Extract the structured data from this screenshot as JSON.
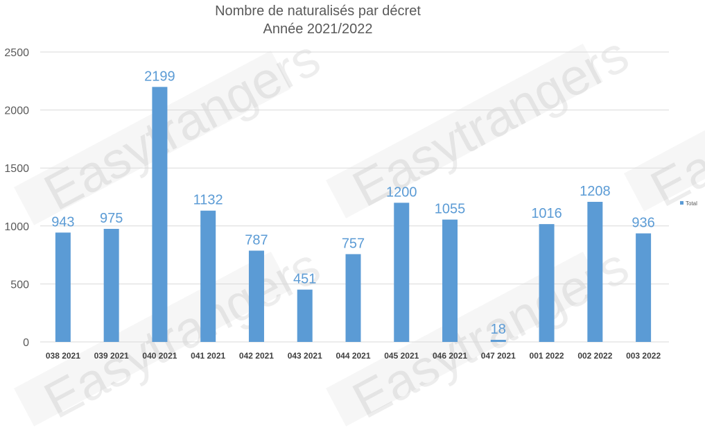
{
  "chart_data": {
    "type": "bar",
    "title": "Nombre de naturalisés par décret",
    "subtitle": "Année 2021/2022",
    "categories": [
      "038 2021",
      "039 2021",
      "040 2021",
      "041 2021",
      "042 2021",
      "043 2021",
      "044 2021",
      "045 2021",
      "046 2021",
      "047 2021",
      "001 2022",
      "002 2022",
      "003 2022"
    ],
    "series": [
      {
        "name": "Total",
        "values": [
          943,
          975,
          2199,
          1132,
          787,
          451,
          757,
          1200,
          1055,
          18,
          1016,
          1208,
          936
        ],
        "color": "#5b9bd5"
      }
    ],
    "ylim": [
      0,
      2500
    ],
    "yticks": [
      "0",
      "500",
      "1000",
      "1500",
      "2000",
      "2500"
    ],
    "ytick_values": [
      0,
      500,
      1000,
      1500,
      2000,
      2500
    ],
    "grid": true,
    "legend_position": "right",
    "data_labels": true,
    "label_color": "#5b9bd5",
    "watermark_text": "Easytrangers"
  }
}
